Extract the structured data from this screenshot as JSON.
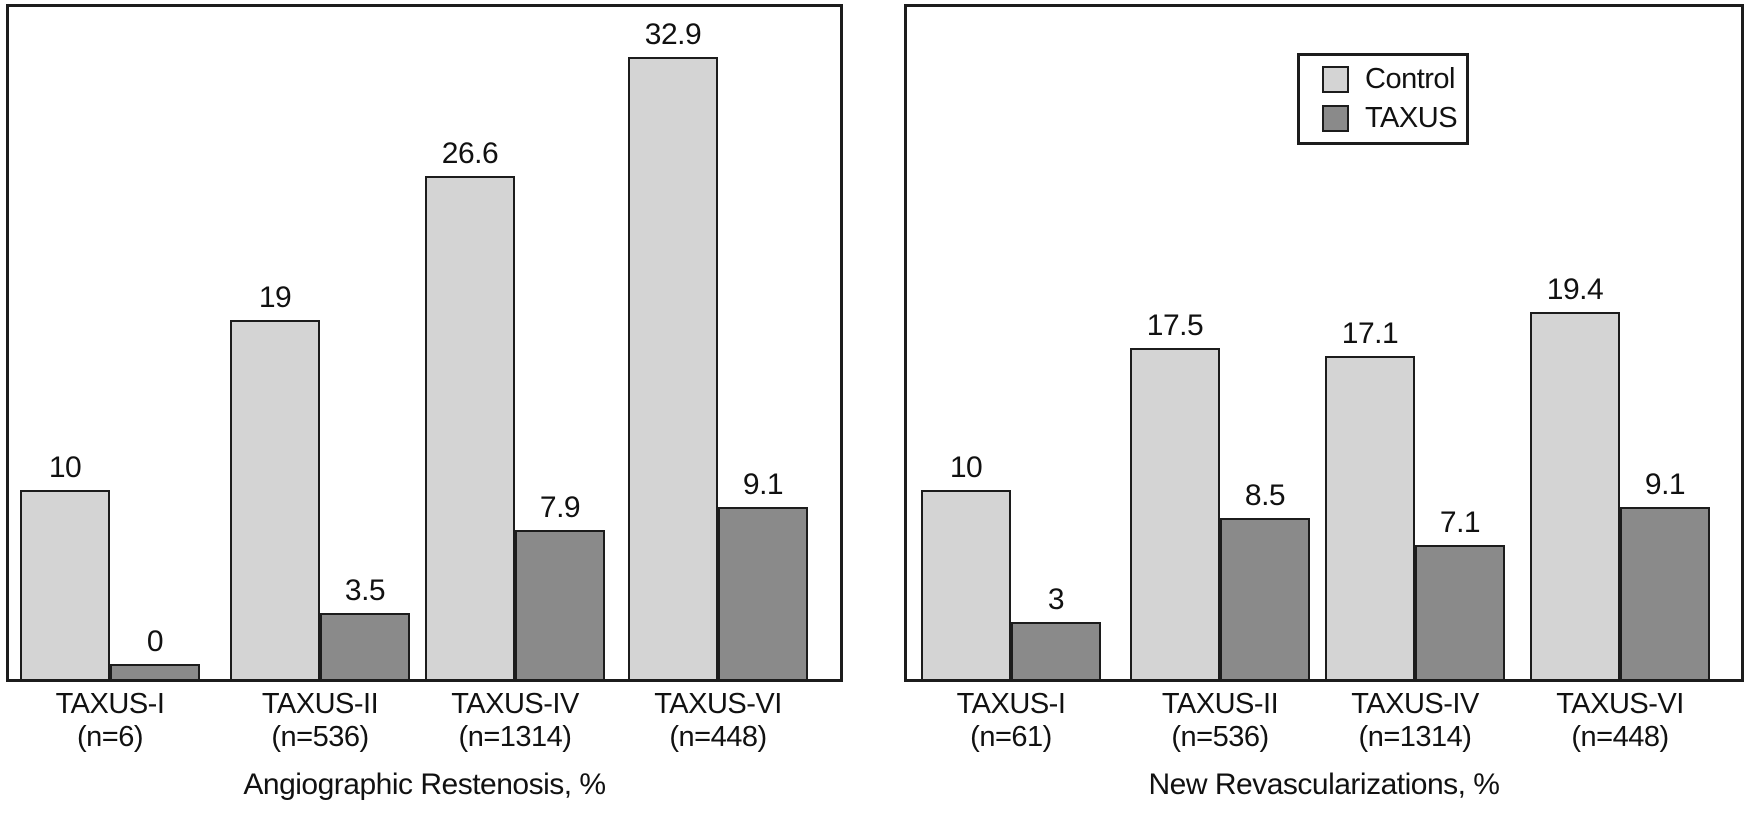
{
  "figure": {
    "colors": {
      "control": "#d4d4d4",
      "taxus": "#8a8a8a",
      "border": "#1c1c1c",
      "text": "#111111",
      "background": "#ffffff"
    },
    "legend": {
      "items": [
        {
          "label": "Control",
          "color_key": "control"
        },
        {
          "label": "TAXUS",
          "color_key": "taxus"
        }
      ],
      "position": "top-right-inside-right-panel"
    }
  },
  "chart_data": [
    {
      "type": "bar",
      "title": "Angiographic Restenosis, %",
      "categories": [
        "TAXUS-I",
        "TAXUS-II",
        "TAXUS-IV",
        "TAXUS-VI"
      ],
      "category_sublabels": [
        "(n=6)",
        "(n=536)",
        "(n=1314)",
        "(n=448)"
      ],
      "series": [
        {
          "name": "Control",
          "values": [
            10,
            19,
            26.6,
            32.9
          ],
          "labels": [
            "10",
            "19",
            "26.6",
            "32.9"
          ]
        },
        {
          "name": "TAXUS",
          "values": [
            0,
            3.5,
            7.9,
            9.1
          ],
          "labels": [
            "0",
            "3.5",
            "7.9",
            "9.1"
          ]
        }
      ],
      "xlabel": "",
      "ylabel": "",
      "ylim": [
        0,
        35
      ],
      "grid": false,
      "value_labels_shown": true,
      "legend_shown": false
    },
    {
      "type": "bar",
      "title": "New Revascularizations, %",
      "categories": [
        "TAXUS-I",
        "TAXUS-II",
        "TAXUS-IV",
        "TAXUS-VI"
      ],
      "category_sublabels": [
        "(n=61)",
        "(n=536)",
        "(n=1314)",
        "(n=448)"
      ],
      "series": [
        {
          "name": "Control",
          "values": [
            10,
            17.5,
            17.1,
            19.4
          ],
          "labels": [
            "10",
            "17.5",
            "17.1",
            "19.4"
          ]
        },
        {
          "name": "TAXUS",
          "values": [
            3,
            8.5,
            7.1,
            9.1
          ],
          "labels": [
            "3",
            "8.5",
            "7.1",
            "9.1"
          ]
        }
      ],
      "xlabel": "",
      "ylabel": "",
      "ylim": [
        0,
        35
      ],
      "grid": false,
      "value_labels_shown": true,
      "legend_shown": true
    }
  ]
}
